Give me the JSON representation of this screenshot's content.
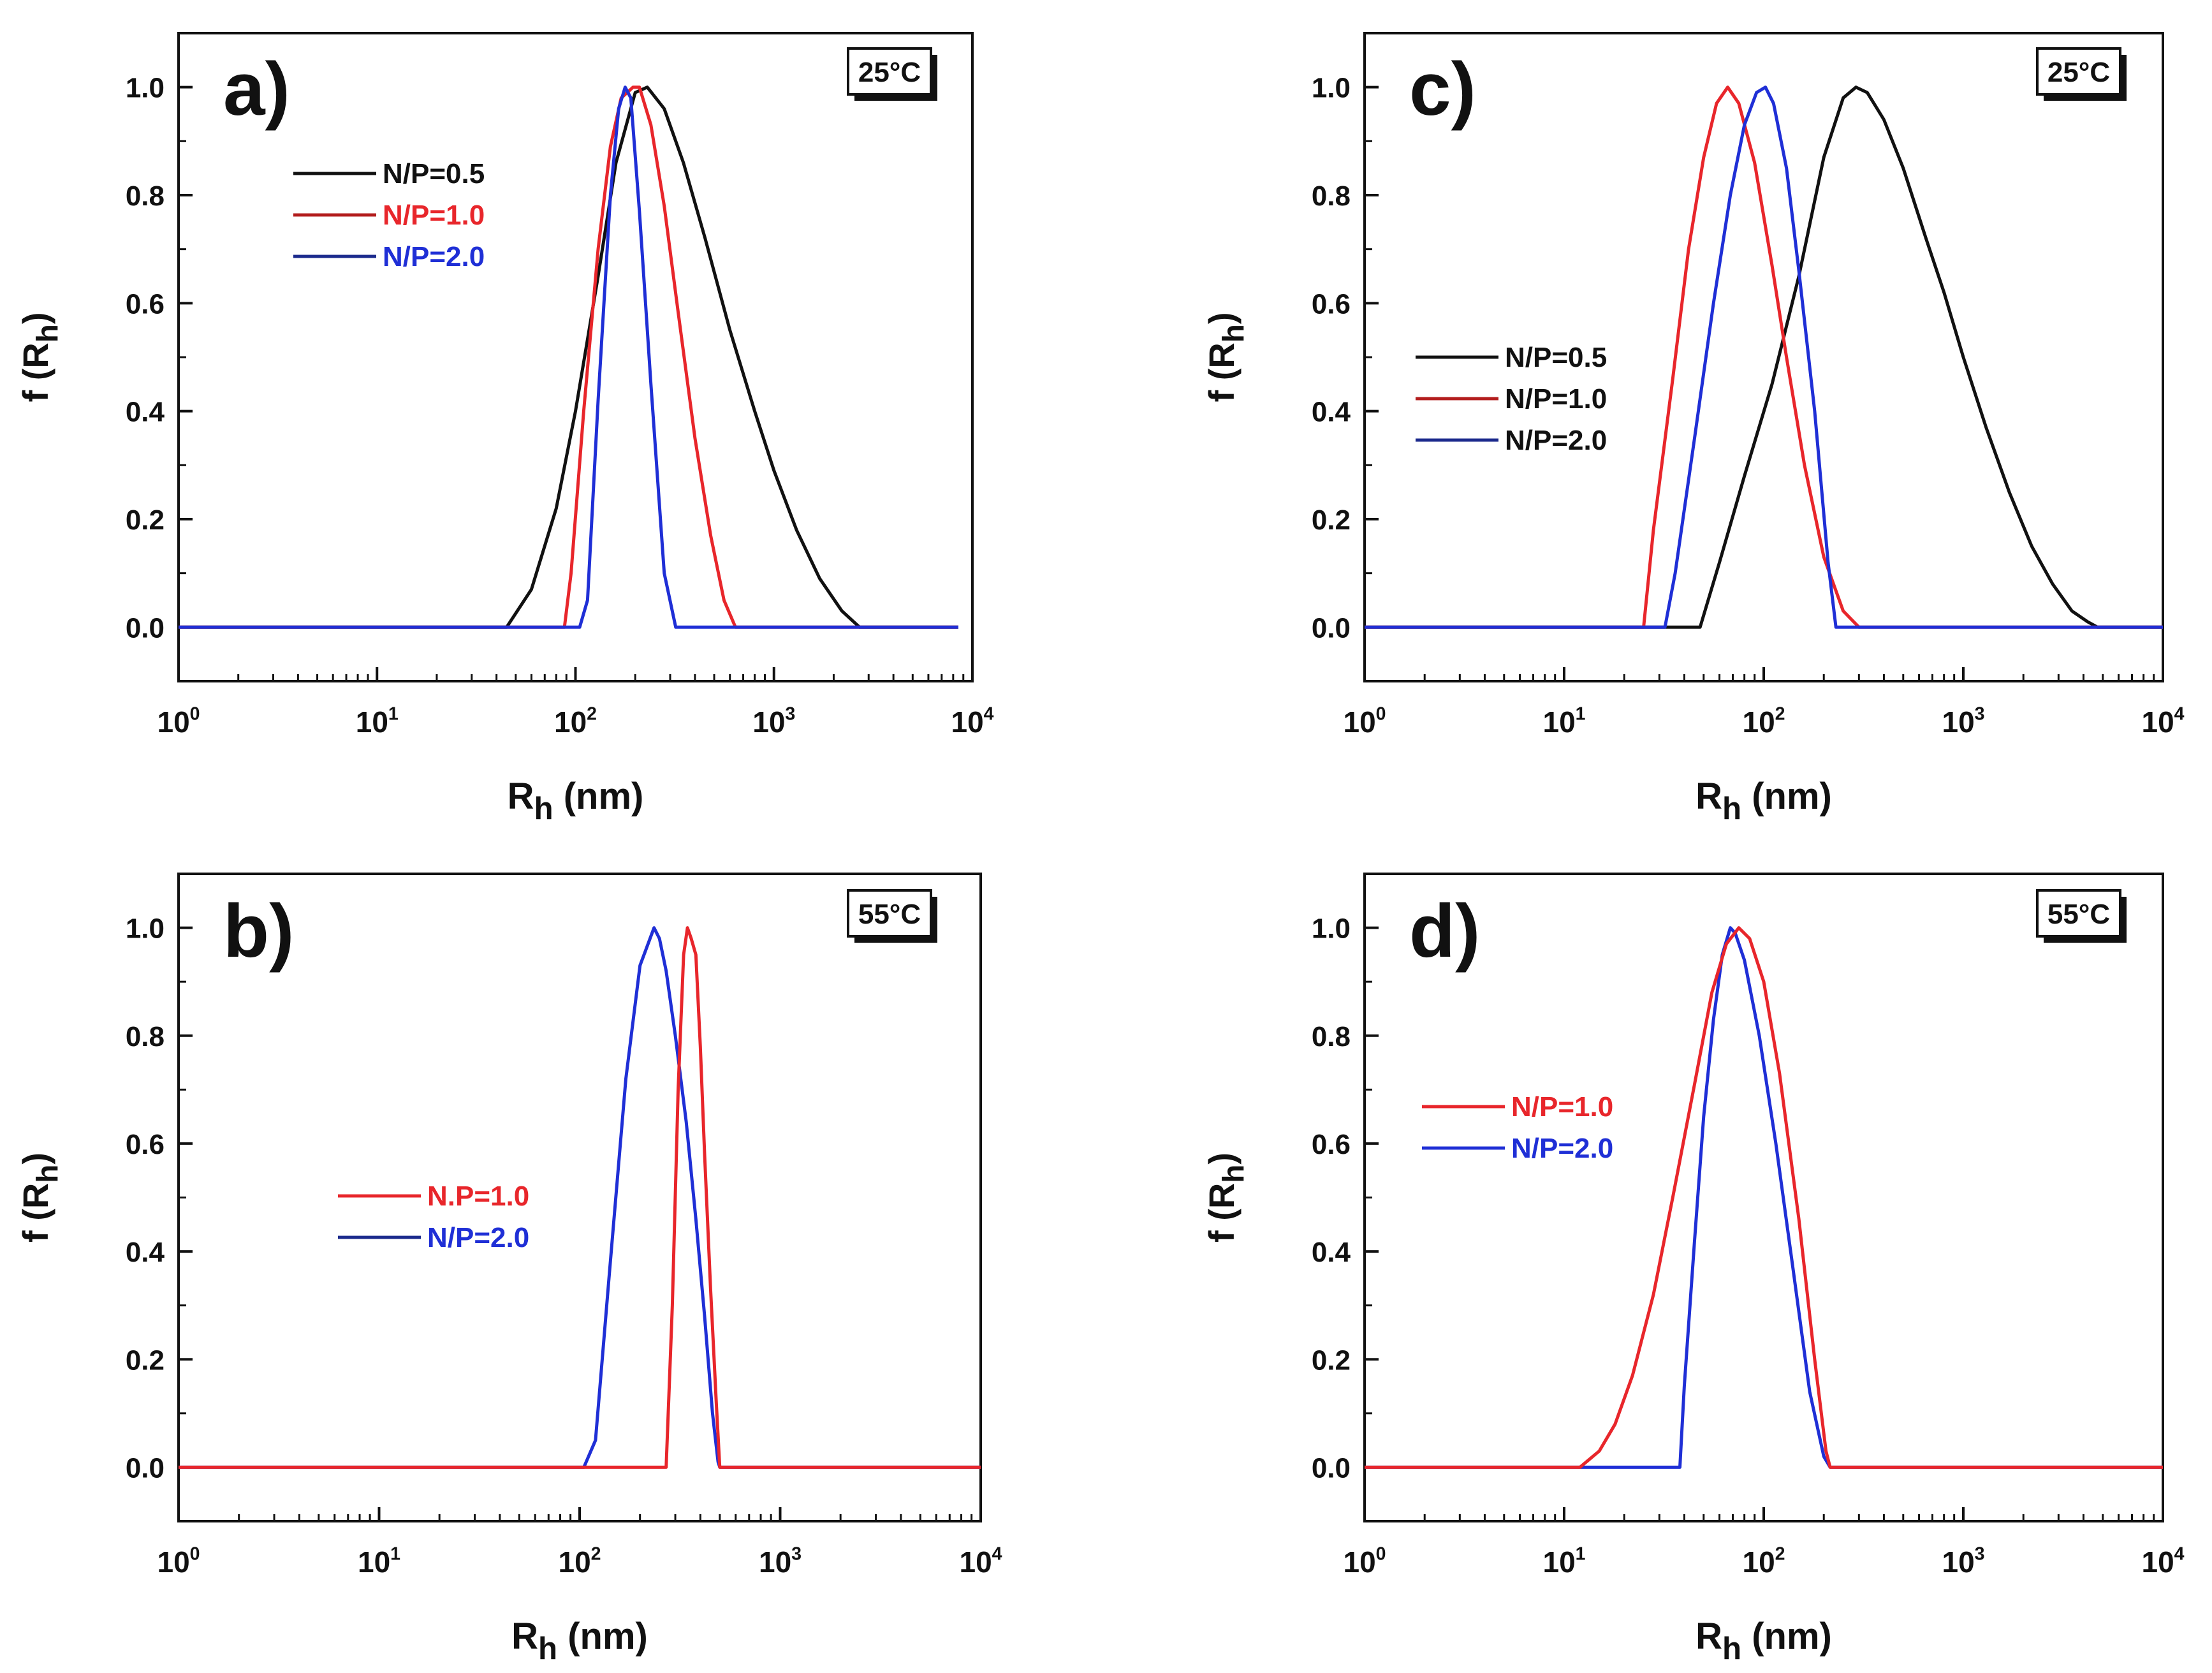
{
  "colors": {
    "black": "#111111",
    "red": "#e8262b",
    "blue": "#1f2fd6",
    "legend_line_red": "#b31d1d",
    "legend_line_blue": "#1b2a8c"
  },
  "chart_data": [
    {
      "id": "a",
      "type": "line",
      "panel_label": "a)",
      "temperature_label": "25°C",
      "title": "",
      "xlabel": "R_h (nm)",
      "ylabel": "f (R_h)",
      "xscale": "log",
      "xlim": [
        1,
        10000
      ],
      "ylim": [
        -0.1,
        1.1
      ],
      "x_ticks": [
        1,
        10,
        100,
        1000,
        10000
      ],
      "x_tick_labels": [
        "10^0",
        "10^1",
        "10^2",
        "10^3",
        "10^4"
      ],
      "y_ticks": [
        0.0,
        0.2,
        0.4,
        0.6,
        0.8,
        1.0
      ],
      "y_tick_labels": [
        "0.0",
        "0.2",
        "0.4",
        "0.6",
        "0.8",
        "1.0"
      ],
      "legend": {
        "position": "upper-left",
        "entries": [
          {
            "label": "N/P=0.5",
            "text_color": "black",
            "line_color": "black"
          },
          {
            "label": "N/P=1.0",
            "text_color": "red",
            "line_color": "legend_line_red"
          },
          {
            "label": "N/P=2.0",
            "text_color": "blue",
            "line_color": "legend_line_blue"
          }
        ]
      },
      "series": [
        {
          "name": "N/P=0.5",
          "color": "black",
          "x": [
            1,
            45,
            60,
            80,
            100,
            130,
            160,
            200,
            230,
            280,
            350,
            450,
            600,
            800,
            1000,
            1300,
            1700,
            2200,
            2700,
            8500
          ],
          "y": [
            0,
            0,
            0.07,
            0.22,
            0.4,
            0.65,
            0.86,
            0.99,
            1.0,
            0.96,
            0.86,
            0.72,
            0.55,
            0.4,
            0.29,
            0.18,
            0.09,
            0.03,
            0,
            0
          ]
        },
        {
          "name": "N/P=1.0",
          "color": "red",
          "x": [
            1,
            88,
            95,
            110,
            130,
            150,
            170,
            195,
            210,
            240,
            280,
            330,
            400,
            480,
            560,
            640,
            8500
          ],
          "y": [
            0,
            0,
            0.1,
            0.4,
            0.7,
            0.89,
            0.98,
            1.0,
            1.0,
            0.93,
            0.78,
            0.58,
            0.35,
            0.17,
            0.05,
            0,
            0
          ]
        },
        {
          "name": "N/P=2.0",
          "color": "blue",
          "x": [
            1,
            105,
            115,
            130,
            150,
            165,
            178,
            190,
            210,
            240,
            280,
            320,
            8500
          ],
          "y": [
            0,
            0,
            0.05,
            0.42,
            0.8,
            0.96,
            1.0,
            0.98,
            0.77,
            0.45,
            0.1,
            0,
            0
          ]
        }
      ]
    },
    {
      "id": "b",
      "type": "line",
      "panel_label": "b)",
      "temperature_label": "55°C",
      "title": "",
      "xlabel": "R_h (nm)",
      "ylabel": "f (R_h)",
      "xscale": "log",
      "xlim": [
        1,
        10000
      ],
      "ylim": [
        -0.1,
        1.1
      ],
      "x_ticks": [
        1,
        10,
        100,
        1000,
        10000
      ],
      "x_tick_labels": [
        "10^0",
        "10^1",
        "10^2",
        "10^3",
        "10^4"
      ],
      "y_ticks": [
        0.0,
        0.2,
        0.4,
        0.6,
        0.8,
        1.0
      ],
      "y_tick_labels": [
        "0.0",
        "0.2",
        "0.4",
        "0.6",
        "0.8",
        "1.0"
      ],
      "legend": {
        "position": "center-left",
        "entries": [
          {
            "label": "N.P=1.0",
            "text_color": "red",
            "line_color": "red"
          },
          {
            "label": "N/P=2.0",
            "text_color": "blue",
            "line_color": "legend_line_blue"
          }
        ]
      },
      "series": [
        {
          "name": "N/P=2.0",
          "color": "blue",
          "x": [
            1,
            105,
            120,
            140,
            170,
            200,
            235,
            250,
            270,
            300,
            340,
            380,
            420,
            460,
            490,
            500,
            10000
          ],
          "y": [
            0,
            0,
            0.05,
            0.35,
            0.72,
            0.93,
            1.0,
            0.98,
            0.92,
            0.8,
            0.64,
            0.46,
            0.28,
            0.1,
            0.01,
            0,
            0
          ]
        },
        {
          "name": "N.P=1.0",
          "color": "red",
          "x": [
            1,
            270,
            290,
            310,
            330,
            345,
            360,
            380,
            400,
            420,
            450,
            480,
            500,
            10000
          ],
          "y": [
            0,
            0,
            0.3,
            0.7,
            0.95,
            1.0,
            0.98,
            0.95,
            0.78,
            0.58,
            0.33,
            0.12,
            0,
            0
          ]
        }
      ]
    },
    {
      "id": "c",
      "type": "line",
      "panel_label": "c)",
      "temperature_label": "25°C",
      "title": "",
      "xlabel": "R_h (nm)",
      "ylabel": "f (R_h)",
      "xscale": "log",
      "xlim": [
        1,
        10000
      ],
      "ylim": [
        -0.1,
        1.1
      ],
      "x_ticks": [
        1,
        10,
        100,
        1000,
        10000
      ],
      "x_tick_labels": [
        "10^0",
        "10^1",
        "10^2",
        "10^3",
        "10^4"
      ],
      "y_ticks": [
        0.0,
        0.2,
        0.4,
        0.6,
        0.8,
        1.0
      ],
      "y_tick_labels": [
        "0.0",
        "0.2",
        "0.4",
        "0.6",
        "0.8",
        "1.0"
      ],
      "legend": {
        "position": "center-left",
        "entries": [
          {
            "label": "N/P=0.5",
            "text_color": "black",
            "line_color": "black"
          },
          {
            "label": "N/P=1.0",
            "text_color": "black",
            "line_color": "legend_line_red"
          },
          {
            "label": "N/P=2.0",
            "text_color": "black",
            "line_color": "legend_line_blue"
          }
        ]
      },
      "series": [
        {
          "name": "N/P=0.5",
          "color": "black",
          "x": [
            1,
            48,
            60,
            80,
            110,
            150,
            200,
            250,
            290,
            330,
            400,
            500,
            650,
            800,
            1000,
            1300,
            1700,
            2200,
            2800,
            3500,
            4200,
            4700,
            10000
          ],
          "y": [
            0,
            0,
            0.12,
            0.28,
            0.45,
            0.65,
            0.87,
            0.98,
            1.0,
            0.99,
            0.94,
            0.85,
            0.72,
            0.62,
            0.5,
            0.37,
            0.25,
            0.15,
            0.08,
            0.03,
            0.01,
            0,
            0
          ]
        },
        {
          "name": "N/P=1.0",
          "color": "red",
          "x": [
            1,
            25,
            28,
            35,
            42,
            50,
            58,
            66,
            75,
            90,
            110,
            130,
            160,
            200,
            250,
            300,
            10000
          ],
          "y": [
            0,
            0,
            0.18,
            0.46,
            0.7,
            0.87,
            0.97,
            1.0,
            0.97,
            0.86,
            0.67,
            0.5,
            0.3,
            0.13,
            0.03,
            0,
            0
          ]
        },
        {
          "name": "N/P=2.0",
          "color": "blue",
          "x": [
            1,
            32,
            36,
            45,
            56,
            68,
            80,
            92,
            102,
            112,
            130,
            150,
            180,
            210,
            230,
            10000
          ],
          "y": [
            0,
            0,
            0.1,
            0.35,
            0.6,
            0.8,
            0.93,
            0.99,
            1.0,
            0.97,
            0.85,
            0.66,
            0.4,
            0.12,
            0,
            0
          ]
        }
      ]
    },
    {
      "id": "d",
      "type": "line",
      "panel_label": "d)",
      "temperature_label": "55°C",
      "title": "",
      "xlabel": "R_h (nm)",
      "ylabel": "f (R_h)",
      "xscale": "log",
      "xlim": [
        1,
        10000
      ],
      "ylim": [
        -0.1,
        1.1
      ],
      "x_ticks": [
        1,
        10,
        100,
        1000,
        10000
      ],
      "x_tick_labels": [
        "10^0",
        "10^1",
        "10^2",
        "10^3",
        "10^4"
      ],
      "y_ticks": [
        0.0,
        0.2,
        0.4,
        0.6,
        0.8,
        1.0
      ],
      "y_tick_labels": [
        "0.0",
        "0.2",
        "0.4",
        "0.6",
        "0.8",
        "1.0"
      ],
      "legend": {
        "position": "center-left",
        "entries": [
          {
            "label": "N/P=1.0",
            "text_color": "red",
            "line_color": "red"
          },
          {
            "label": "N/P=2.0",
            "text_color": "blue",
            "line_color": "blue"
          }
        ]
      },
      "series": [
        {
          "name": "N/P=2.0",
          "color": "blue",
          "x": [
            1,
            38,
            40,
            45,
            50,
            56,
            62,
            68,
            72,
            80,
            95,
            115,
            140,
            170,
            200,
            215,
            10000
          ],
          "y": [
            0,
            0,
            0.15,
            0.42,
            0.65,
            0.83,
            0.95,
            1.0,
            0.99,
            0.94,
            0.8,
            0.6,
            0.37,
            0.14,
            0.02,
            0,
            0
          ]
        },
        {
          "name": "N/P=1.0",
          "color": "red",
          "x": [
            1,
            12,
            15,
            18,
            22,
            28,
            35,
            45,
            55,
            65,
            75,
            85,
            100,
            120,
            150,
            180,
            205,
            215,
            10000
          ],
          "y": [
            0,
            0,
            0.03,
            0.08,
            0.17,
            0.32,
            0.5,
            0.71,
            0.88,
            0.97,
            1.0,
            0.98,
            0.9,
            0.73,
            0.46,
            0.2,
            0.03,
            0,
            0
          ]
        }
      ]
    }
  ]
}
